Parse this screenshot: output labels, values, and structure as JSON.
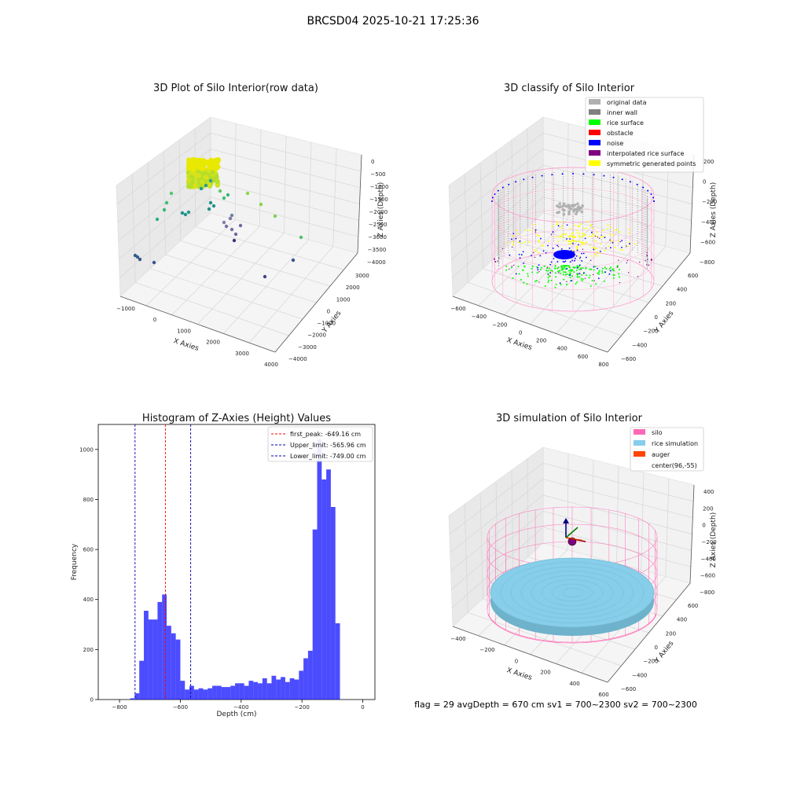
{
  "figure": {
    "suptitle": "BRCSD04 2025-10-21 17:25:36",
    "footer": "flag = 29  avgDepth = 670 cm  sv1 = 700~2300  sv2 = 700~2300"
  },
  "colors": {
    "silo": "#ff69b4",
    "rice": "#87ceeb",
    "auger": "#ff4500",
    "hist_bar": "#0000ff",
    "peak_line": "#ff0000",
    "limit_line": "#0000aa",
    "original": "#b0b0b0",
    "inner_wall": "#808080",
    "rice_surface": "#00ff00",
    "obstacle": "#ff0000",
    "noise": "#0000ff",
    "interpolated": "#800080",
    "symmetric": "#ffff00"
  },
  "chart_data": [
    {
      "type": "scatter",
      "title": "3D Plot of Silo Interior(row data)",
      "xlabel": "X Axies",
      "ylabel": "Y Axies",
      "zlabel": "Z Axies (Depth)",
      "x_ticks": [
        "−1000",
        "0",
        "1000",
        "2000",
        "3000",
        "4000"
      ],
      "y_ticks": [
        "3000",
        "2000",
        "1000",
        "0",
        "−1000",
        "−2000",
        "−3000",
        "−4000"
      ],
      "z_ticks": [
        "0",
        "−500",
        "−1000",
        "−1500",
        "−2000",
        "−2500",
        "−3000",
        "−3500",
        "−4000"
      ],
      "xlim": [
        -1000,
        4500
      ],
      "ylim": [
        -4000,
        3000
      ],
      "zlim": [
        -4000,
        0
      ]
    },
    {
      "type": "scatter",
      "title": "3D classify of Silo Interior",
      "xlabel": "X Axies",
      "ylabel": "Y Axies",
      "zlabel": "Z Axies (Depth)",
      "x_ticks": [
        "−600",
        "−400",
        "−200",
        "0",
        "200",
        "400",
        "600",
        "800"
      ],
      "y_ticks": [
        "600",
        "400",
        "200",
        "0",
        "−200",
        "−400",
        "−600"
      ],
      "z_ticks": [
        "200",
        "0",
        "−200",
        "−400",
        "−600",
        "−800"
      ],
      "z_top_tick": "200",
      "legend_position": "top-right",
      "legend": [
        {
          "name": "original data",
          "color": "#b0b0b0"
        },
        {
          "name": "inner wall",
          "color": "#808080"
        },
        {
          "name": "rice surface",
          "color": "#00ff00"
        },
        {
          "name": "obstacle",
          "color": "#ff0000"
        },
        {
          "name": "noise",
          "color": "#0000ff"
        },
        {
          "name": "interpolated rice surface",
          "color": "#800080"
        },
        {
          "name": "symmetric generated points",
          "color": "#ffff00"
        }
      ]
    },
    {
      "type": "bar",
      "title": "Histogram of Z-Axies (Height) Values",
      "xlabel": "Depth (cm)",
      "ylabel": "Frequency",
      "xlim": [
        -870,
        40
      ],
      "ylim": [
        0,
        1100
      ],
      "x_ticks": [
        -800,
        -600,
        -400,
        -200,
        0
      ],
      "y_ticks": [
        0,
        200,
        400,
        600,
        800,
        1000
      ],
      "bin_width": 15,
      "bin_start": -765,
      "values": [
        5,
        25,
        155,
        355,
        320,
        320,
        390,
        420,
        295,
        265,
        240,
        75,
        40,
        55,
        40,
        45,
        40,
        45,
        55,
        55,
        50,
        50,
        55,
        65,
        65,
        55,
        75,
        70,
        65,
        85,
        65,
        95,
        80,
        90,
        70,
        85,
        80,
        115,
        165,
        195,
        680,
        1040,
        880,
        920,
        770,
        305
      ],
      "lines": [
        {
          "name": "first_peak: -649.16 cm",
          "x": -649.16,
          "color": "#ff0000"
        },
        {
          "name": "Upper_limit: -565.96 cm",
          "x": -565.96,
          "color": "#0000aa"
        },
        {
          "name": "Lower_limit: -749.00 cm",
          "x": -749.0,
          "color": "#0000aa"
        }
      ],
      "legend_position": "top-right"
    },
    {
      "type": "scatter",
      "title": "3D simulation of Silo Interior",
      "xlabel": "X Axies",
      "ylabel": "Y Axies",
      "zlabel": "Z Axies (Depth)",
      "x_ticks": [
        "−400",
        "−200",
        "0",
        "200",
        "400",
        "600"
      ],
      "y_ticks": [
        "600",
        "400",
        "200",
        "0",
        "−200",
        "−400",
        "−600"
      ],
      "z_ticks": [
        "400",
        "200",
        "0",
        "−200",
        "−400",
        "−600",
        "−800"
      ],
      "legend_position": "top-right",
      "legend": [
        {
          "name": "silo",
          "color": "#ff69b4"
        },
        {
          "name": "rice simulation",
          "color": "#87ceeb"
        },
        {
          "name": "auger",
          "color": "#ff4500"
        },
        {
          "name": "center(96,-55)",
          "color": ""
        }
      ]
    }
  ]
}
